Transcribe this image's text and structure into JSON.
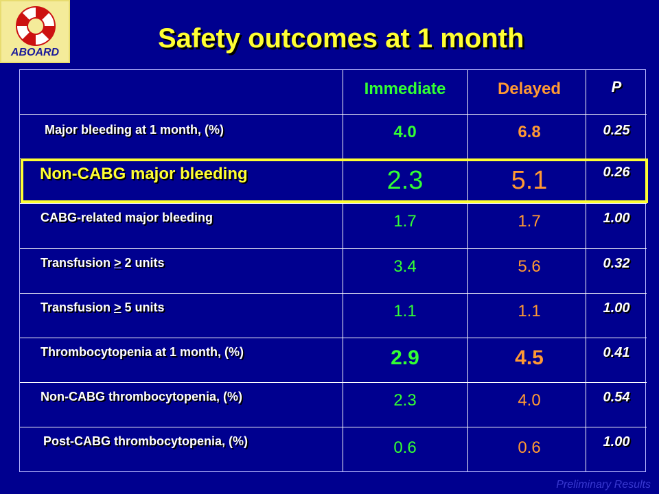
{
  "logo": {
    "text": "ABOARD"
  },
  "title": "Safety outcomes at 1 month",
  "table": {
    "headers": {
      "immediate": "Immediate",
      "delayed": "Delayed",
      "p": "P"
    },
    "rows": [
      {
        "label": "Major bleeding at 1 month, (%)",
        "immediate": "4.0",
        "delayed": "6.8",
        "p": "0.25"
      },
      {
        "label": "Non-CABG major bleeding",
        "immediate": "2.3",
        "delayed": "5.1",
        "p": "0.26"
      },
      {
        "label": "CABG-related major bleeding",
        "immediate": "1.7",
        "delayed": "1.7",
        "p": "1.00"
      },
      {
        "label_pre": "Transfusion ",
        "label_sym": ">",
        "label_post": " 2 units",
        "immediate": "3.4",
        "delayed": "5.6",
        "p": "0.32"
      },
      {
        "label_pre": "Transfusion ",
        "label_sym": ">",
        "label_post": " 5 units",
        "immediate": "1.1",
        "delayed": "1.1",
        "p": "1.00"
      },
      {
        "label": "Thrombocytopenia at 1 month, (%)",
        "immediate": "2.9",
        "delayed": "4.5",
        "p": "0.41"
      },
      {
        "label": "Non-CABG thrombocytopenia, (%)",
        "immediate": "2.3",
        "delayed": "4.0",
        "p": "0.54"
      },
      {
        "label": "Post-CABG thrombocytopenia, (%)",
        "immediate": "0.6",
        "delayed": "0.6",
        "p": "1.00"
      }
    ]
  },
  "footer": "Preliminary Results",
  "colors": {
    "background": "#00008f",
    "title": "#ffff33",
    "immediate": "#33ff33",
    "delayed": "#ff9933",
    "highlight": "#ffff33"
  }
}
